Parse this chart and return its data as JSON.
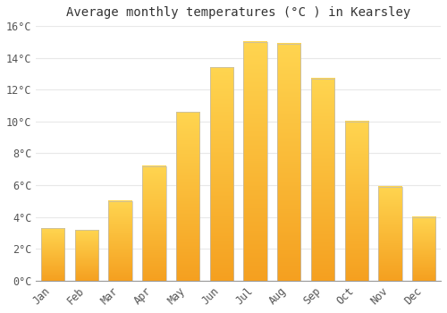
{
  "title": "Average monthly temperatures (°C ) in Kearsley",
  "months": [
    "Jan",
    "Feb",
    "Mar",
    "Apr",
    "May",
    "Jun",
    "Jul",
    "Aug",
    "Sep",
    "Oct",
    "Nov",
    "Dec"
  ],
  "values": [
    3.3,
    3.2,
    5.0,
    7.2,
    10.6,
    13.4,
    15.0,
    14.9,
    12.7,
    10.0,
    5.9,
    4.0
  ],
  "bar_color": "#FFA500",
  "bar_highlight": "#FFD700",
  "bar_edge_color": "#CCCCCC",
  "ylim": [
    0,
    16
  ],
  "yticks": [
    0,
    2,
    4,
    6,
    8,
    10,
    12,
    14,
    16
  ],
  "ytick_labels": [
    "0°C",
    "2°C",
    "4°C",
    "6°C",
    "8°C",
    "10°C",
    "12°C",
    "14°C",
    "16°C"
  ],
  "background_color": "#ffffff",
  "grid_color": "#e8e8e8",
  "title_fontsize": 10,
  "tick_fontsize": 8.5,
  "bar_bottom_color": "#F5A623",
  "bar_top_color": "#FFD040"
}
